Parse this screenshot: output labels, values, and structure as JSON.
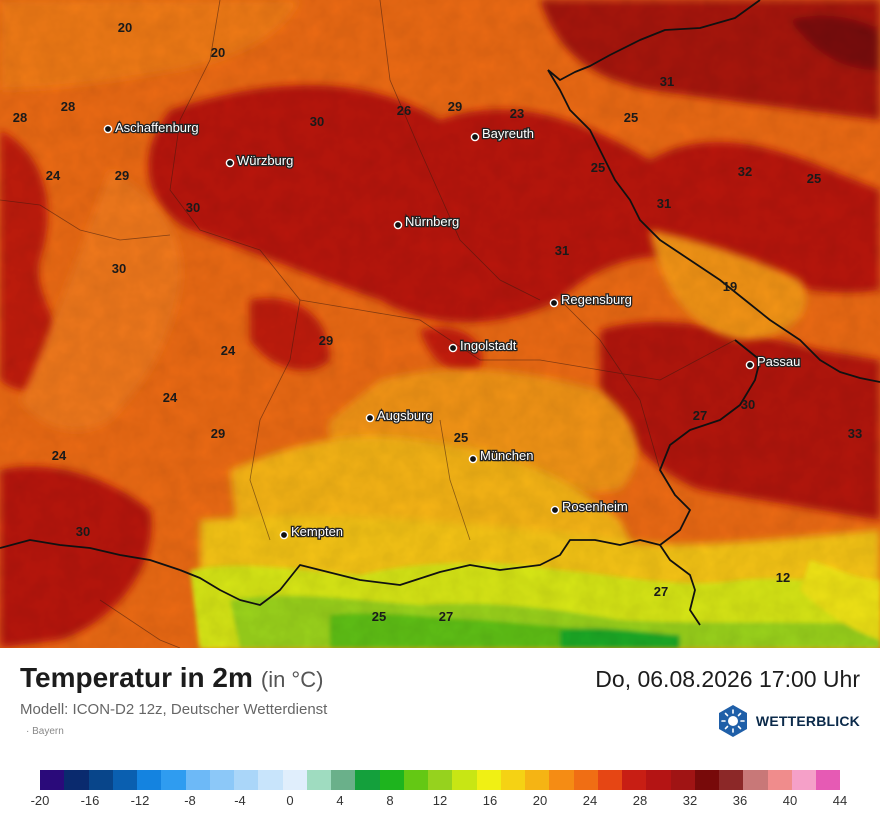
{
  "header": {
    "title": "Temperatur in 2m",
    "unit": "(in °C)",
    "datetime": "Do, 06.08.2026 17:00 Uhr",
    "model": "Modell: ICON-D2 12z, Deutscher Wetterdienst",
    "region": "Bayern"
  },
  "brand": {
    "name": "WETTERBLICK",
    "color": "#1f5fa8"
  },
  "scale": {
    "colors": [
      "#2a0a7a",
      "#0a2a6e",
      "#08458a",
      "#0a5fb0",
      "#1483e0",
      "#2f9cf0",
      "#6db9f7",
      "#8cc8f8",
      "#aad6f9",
      "#c8e4fb",
      "#e0eefc",
      "#9fdcc0",
      "#6ab08a",
      "#14a03c",
      "#1eb41e",
      "#64c814",
      "#96d21e",
      "#c8e614",
      "#f0f014",
      "#f5d214",
      "#f5b414",
      "#f58c14",
      "#f06e14",
      "#e64614",
      "#c81e14",
      "#b41414",
      "#a01414",
      "#780a0a",
      "#8c2828",
      "#c87878",
      "#f08c8c",
      "#f5a0c8",
      "#e65ab4"
    ],
    "ticks": [
      "-20",
      "-16",
      "-12",
      "-8",
      "-4",
      "0",
      "4",
      "8",
      "12",
      "16",
      "20",
      "24",
      "28",
      "32",
      "36",
      "40",
      "44"
    ]
  },
  "cities": [
    {
      "name": "Aschaffenburg"
    },
    {
      "name": "Würzburg"
    },
    {
      "name": "Bayreuth"
    },
    {
      "name": "Nürnberg"
    },
    {
      "name": "Regensburg"
    },
    {
      "name": "Ingolstadt"
    },
    {
      "name": "Passau"
    },
    {
      "name": "Augsburg"
    },
    {
      "name": "München"
    },
    {
      "name": "Rosenheim"
    },
    {
      "name": "Kempten"
    }
  ],
  "values": [
    "20",
    "20",
    "28",
    "28",
    "30",
    "26",
    "29",
    "23",
    "31",
    "25",
    "32",
    "25",
    "24",
    "29",
    "30",
    "25",
    "31",
    "31",
    "30",
    "19",
    "29",
    "24",
    "24",
    "29",
    "30",
    "27",
    "25",
    "24",
    "33",
    "30",
    "27",
    "12",
    "25",
    "27"
  ]
}
